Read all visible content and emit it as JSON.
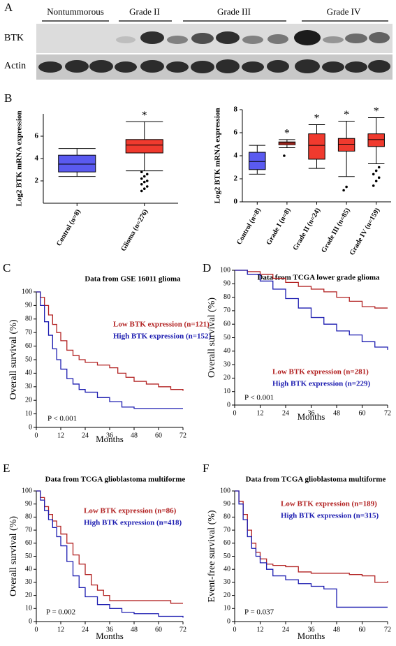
{
  "figure": {
    "panel_labels": [
      "A",
      "B",
      "C",
      "D",
      "E",
      "F"
    ],
    "blot": {
      "groups": [
        "Nontummorous",
        "Grade II",
        "Grade III",
        "Grade IV"
      ],
      "rows": [
        "BTK",
        "Actin"
      ]
    }
  },
  "chart_data": [
    {
      "type": "box",
      "ylabel": "Log2 BTK mRNA expression",
      "categories": [
        "Control (n=8)",
        "Glioma (n=276)"
      ],
      "colors": [
        "#5a5af0",
        "#f03a2e"
      ],
      "boxes": [
        {
          "low": 2.4,
          "q1": 2.8,
          "median": 3.5,
          "q3": 4.3,
          "high": 4.9,
          "outliers": []
        },
        {
          "low": 2.9,
          "q1": 4.5,
          "median": 5.2,
          "q3": 5.7,
          "high": 7.3,
          "outliers": [
            1.1,
            1.3,
            1.5,
            1.7,
            1.9,
            2.0,
            2.2,
            2.4,
            2.6,
            2.8
          ]
        }
      ],
      "significance": [
        null,
        "*"
      ],
      "ylim": [
        0,
        8
      ],
      "yticks": [
        2,
        4,
        6
      ]
    },
    {
      "type": "box",
      "ylabel": "Log2 BTK mRNA expression",
      "categories": [
        "Control (n=8)",
        "Grade I (n=8)",
        "Grade II (n=24)",
        "Grade III (n=85)",
        "Grade IV (n=159)"
      ],
      "colors": [
        "#5a5af0",
        "#f03a2e",
        "#f03a2e",
        "#f03a2e",
        "#f03a2e"
      ],
      "boxes": [
        {
          "low": 2.4,
          "q1": 2.8,
          "median": 3.5,
          "q3": 4.3,
          "high": 4.9,
          "outliers": []
        },
        {
          "low": 4.7,
          "q1": 4.95,
          "median": 5.1,
          "q3": 5.2,
          "high": 5.4,
          "outliers": [
            4.0
          ]
        },
        {
          "low": 2.9,
          "q1": 3.7,
          "median": 4.9,
          "q3": 5.9,
          "high": 6.7,
          "outliers": []
        },
        {
          "low": 2.2,
          "q1": 4.4,
          "median": 5.0,
          "q3": 5.5,
          "high": 7.0,
          "outliers": [
            1.0,
            1.3
          ]
        },
        {
          "low": 3.3,
          "q1": 4.8,
          "median": 5.4,
          "q3": 5.9,
          "high": 7.3,
          "outliers": [
            1.4,
            1.8,
            2.1,
            2.4,
            2.7,
            3.0
          ]
        }
      ],
      "significance": [
        null,
        "*",
        "*",
        "*",
        "*"
      ],
      "ylim": [
        0,
        8
      ],
      "yticks": [
        0,
        2,
        4,
        6,
        8
      ]
    },
    {
      "type": "km",
      "title": "Data from GSE 16011 glioma",
      "ylabel": "Overall survival (%)",
      "xlabel": "Months",
      "p_label": "P < 0.001",
      "xlim": [
        0,
        72
      ],
      "xticks": [
        0,
        12,
        24,
        36,
        48,
        60,
        72
      ],
      "ylim": [
        0,
        100
      ],
      "yticks": [
        0,
        10,
        20,
        30,
        40,
        50,
        60,
        70,
        80,
        90,
        100
      ],
      "series": [
        {
          "name": "Low BTK expression (n=121)",
          "color": "#b22222",
          "x": [
            0,
            2,
            4,
            6,
            8,
            10,
            12,
            15,
            18,
            21,
            24,
            30,
            36,
            40,
            44,
            48,
            54,
            60,
            66,
            72
          ],
          "values": [
            100,
            96,
            90,
            83,
            76,
            70,
            64,
            57,
            53,
            50,
            48,
            46,
            44,
            40,
            37,
            34,
            32,
            30,
            28,
            27
          ]
        },
        {
          "name": "High BTK expression (n=152)",
          "color": "#1c1cb0",
          "x": [
            0,
            2,
            4,
            6,
            8,
            10,
            12,
            15,
            18,
            21,
            24,
            30,
            36,
            42,
            48,
            60,
            72
          ],
          "values": [
            100,
            90,
            78,
            68,
            58,
            50,
            43,
            36,
            32,
            28,
            26,
            22,
            19,
            15,
            14,
            14,
            14
          ]
        }
      ]
    },
    {
      "type": "km",
      "title": "Data from TCGA lower grade glioma",
      "ylabel": "Overall survival (%)",
      "xlabel": "Months",
      "p_label": "P < 0.001",
      "xlim": [
        0,
        72
      ],
      "xticks": [
        0,
        12,
        24,
        36,
        48,
        60,
        72
      ],
      "ylim": [
        0,
        100
      ],
      "yticks": [
        0,
        10,
        20,
        30,
        40,
        50,
        60,
        70,
        80,
        90,
        100
      ],
      "series": [
        {
          "name": "Low BTK expression (n=281)",
          "color": "#b22222",
          "x": [
            0,
            6,
            12,
            18,
            24,
            30,
            36,
            42,
            48,
            54,
            60,
            66,
            72
          ],
          "values": [
            100,
            99,
            97,
            94,
            91,
            88,
            86,
            84,
            80,
            77,
            73,
            72,
            72
          ]
        },
        {
          "name": "High BTK expression (n=229)",
          "color": "#1c1cb0",
          "x": [
            0,
            6,
            12,
            18,
            24,
            30,
            36,
            42,
            48,
            54,
            60,
            66,
            72
          ],
          "values": [
            100,
            97,
            92,
            86,
            79,
            72,
            65,
            60,
            55,
            52,
            47,
            43,
            41
          ]
        }
      ]
    },
    {
      "type": "km",
      "title": "Data from TCGA glioblastoma multiforme",
      "ylabel": "Overall survival (%)",
      "xlabel": "Months",
      "p_label": "P = 0.002",
      "xlim": [
        0,
        72
      ],
      "xticks": [
        0,
        12,
        24,
        36,
        48,
        60,
        72
      ],
      "ylim": [
        0,
        100
      ],
      "yticks": [
        0,
        10,
        20,
        30,
        40,
        50,
        60,
        70,
        80,
        90,
        100
      ],
      "series": [
        {
          "name": "Low BTK expression (n=86)",
          "color": "#b22222",
          "x": [
            0,
            2,
            4,
            6,
            8,
            10,
            12,
            15,
            18,
            21,
            24,
            27,
            30,
            33,
            36,
            48,
            60,
            66,
            72
          ],
          "values": [
            100,
            95,
            88,
            82,
            77,
            73,
            67,
            60,
            51,
            44,
            36,
            28,
            24,
            20,
            16,
            16,
            16,
            14,
            14
          ]
        },
        {
          "name": "High BTK expression (n=418)",
          "color": "#1c1cb0",
          "x": [
            0,
            2,
            4,
            6,
            8,
            10,
            12,
            15,
            18,
            21,
            24,
            30,
            36,
            42,
            48,
            60,
            72
          ],
          "values": [
            100,
            93,
            85,
            78,
            72,
            65,
            58,
            46,
            35,
            26,
            19,
            13,
            10,
            7,
            6,
            4,
            3
          ]
        }
      ]
    },
    {
      "type": "km",
      "title": "Data from TCGA glioblastoma multiforme",
      "ylabel": "Event-free survival (%)",
      "xlabel": "Months",
      "p_label": "P = 0.037",
      "xlim": [
        0,
        72
      ],
      "xticks": [
        0,
        12,
        24,
        36,
        48,
        60,
        72
      ],
      "ylim": [
        0,
        100
      ],
      "yticks": [
        0,
        10,
        20,
        30,
        40,
        50,
        60,
        70,
        80,
        90,
        100
      ],
      "series": [
        {
          "name": "Low BTK expression (n=189)",
          "color": "#b22222",
          "x": [
            0,
            2,
            4,
            6,
            8,
            10,
            12,
            15,
            18,
            24,
            30,
            36,
            48,
            54,
            60,
            66,
            72
          ],
          "values": [
            100,
            92,
            82,
            70,
            60,
            53,
            48,
            44,
            43,
            42,
            38,
            37,
            37,
            36,
            35,
            30,
            31
          ]
        },
        {
          "name": "High BTK expression (n=315)",
          "color": "#1c1cb0",
          "x": [
            0,
            2,
            4,
            6,
            8,
            10,
            12,
            15,
            18,
            24,
            30,
            36,
            42,
            48,
            60,
            72
          ],
          "values": [
            100,
            90,
            78,
            65,
            56,
            50,
            45,
            40,
            35,
            32,
            29,
            27,
            25,
            11,
            11,
            11
          ]
        }
      ]
    }
  ]
}
